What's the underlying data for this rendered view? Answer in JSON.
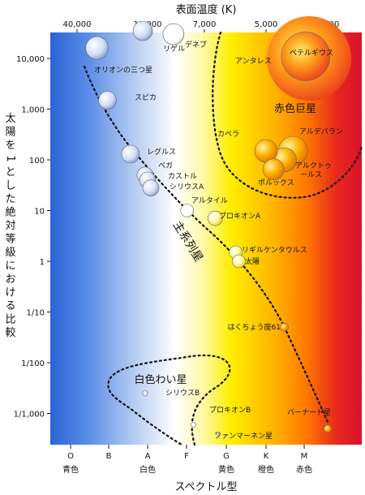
{
  "chart_data": {
    "type": "scatter",
    "title": "",
    "top_axis": {
      "label": "表面温度 (K)",
      "ticks": [
        {
          "value": 40000,
          "label": "40,000"
        },
        {
          "value": 10000,
          "label": "10,000"
        },
        {
          "value": 7000,
          "label": "7,000"
        },
        {
          "value": 5000,
          "label": "5,000"
        },
        {
          "value": 3000,
          "label": "3,000"
        }
      ]
    },
    "x_axis": {
      "label": "スペクトル型",
      "ticks": [
        {
          "value": "O",
          "label": "O"
        },
        {
          "value": "B",
          "label": "B"
        },
        {
          "value": "A",
          "label": "A"
        },
        {
          "value": "F",
          "label": "F"
        },
        {
          "value": "G",
          "label": "G"
        },
        {
          "value": "K",
          "label": "K"
        },
        {
          "value": "M",
          "label": "M"
        }
      ],
      "color_names": [
        {
          "type": "O",
          "label": "青色"
        },
        {
          "type": "A",
          "label": "白色"
        },
        {
          "type": "G",
          "label": "黄色"
        },
        {
          "type": "K",
          "label": "橙色"
        },
        {
          "type": "M",
          "label": "赤色"
        }
      ]
    },
    "y_axis": {
      "label": "太陽を1とした絶対等級における比較",
      "scale": "log",
      "range": [
        0.0003,
        40000
      ],
      "ticks": [
        {
          "value": 10000,
          "label": "10,000"
        },
        {
          "value": 1000,
          "label": "1,000"
        },
        {
          "value": 100,
          "label": "100"
        },
        {
          "value": 10,
          "label": "10"
        },
        {
          "value": 1,
          "label": "1"
        },
        {
          "value": 0.1,
          "label": "1/10"
        },
        {
          "value": 0.01,
          "label": "1/100"
        },
        {
          "value": 0.001,
          "label": "1/1,000"
        }
      ]
    },
    "regions": [
      {
        "name": "主系列星",
        "kind": "main-sequence"
      },
      {
        "name": "赤色巨星",
        "kind": "red-giants"
      },
      {
        "name": "白色わい星",
        "kind": "white-dwarfs"
      }
    ],
    "stars": [
      {
        "label": "ベテルギウス",
        "temperature": 3500,
        "luminosity": 10000
      },
      {
        "label": "アンタレス",
        "temperature": 3600,
        "luminosity": 11000
      },
      {
        "label": "リゲル",
        "temperature": 11000,
        "luminosity": 35000
      },
      {
        "label": "デネブ",
        "temperature": 8500,
        "luminosity": 30000
      },
      {
        "label": "オリオンの三つ星",
        "temperature": 27000,
        "luminosity": 16000
      },
      {
        "label": "スピカ",
        "temperature": 22000,
        "luminosity": 1500
      },
      {
        "label": "カペラ",
        "temperature": 5000,
        "luminosity": 150
      },
      {
        "label": "アルデバラン",
        "temperature": 4000,
        "luminosity": 150
      },
      {
        "label": "アルクトゥールス",
        "temperature": 4300,
        "luminosity": 100
      },
      {
        "label": "ポルックス",
        "temperature": 4700,
        "luminosity": 65
      },
      {
        "label": "レグルス",
        "temperature": 14000,
        "luminosity": 130
      },
      {
        "label": "ベガ",
        "temperature": 10500,
        "luminosity": 50
      },
      {
        "label": "カストル",
        "temperature": 10000,
        "luminosity": 40
      },
      {
        "label": "シリウスA",
        "temperature": 9800,
        "luminosity": 28
      },
      {
        "label": "アルタイル",
        "temperature": 7800,
        "luminosity": 10
      },
      {
        "label": "プロキオンA",
        "temperature": 6600,
        "luminosity": 7
      },
      {
        "label": "リギルケンタウルス",
        "temperature": 5900,
        "luminosity": 1.5
      },
      {
        "label": "太陽",
        "temperature": 5800,
        "luminosity": 1
      },
      {
        "label": "はくちょう座61",
        "temperature": 4300,
        "luminosity": 0.05
      },
      {
        "label": "シリウスB",
        "temperature": 10500,
        "luminosity": 0.0025
      },
      {
        "label": "プロキオンB",
        "temperature": 7500,
        "luminosity": 0.0006
      },
      {
        "label": "ファンマーネン星",
        "temperature": 6500,
        "luminosity": 0.0004
      },
      {
        "label": "バーナード星",
        "temperature": 3000,
        "luminosity": 0.0005
      }
    ]
  },
  "colors": {
    "blue": "#2a64d6",
    "white": "#ffffff",
    "yellow": "#ffee00",
    "orange": "#ff8800",
    "red": "#d8122a"
  }
}
